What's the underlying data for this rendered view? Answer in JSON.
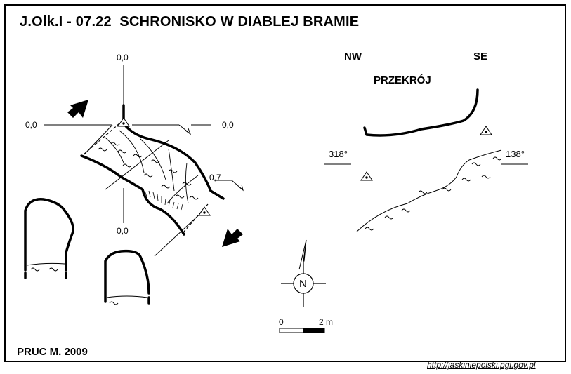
{
  "title": "J.Olk.I - 07.22  SCHRONISKO W DIABLEJ BRAMIE",
  "author": "PRUC M.  2009",
  "url": "http://jaskiniepolski.pgi.gov.pl",
  "plan": {
    "heights": {
      "top": "0,0",
      "left": "0,0",
      "right": "0,0",
      "bottom": "0,0",
      "side": "0,7"
    }
  },
  "section": {
    "label": "PRZEKRÓJ",
    "nw": "NW",
    "se": "SE",
    "azimuth_left": "318°",
    "azimuth_right": "138°"
  },
  "north": "N",
  "scale": {
    "start": "0",
    "end": "2 m"
  },
  "colors": {
    "ink": "#000000",
    "background": "#ffffff"
  }
}
